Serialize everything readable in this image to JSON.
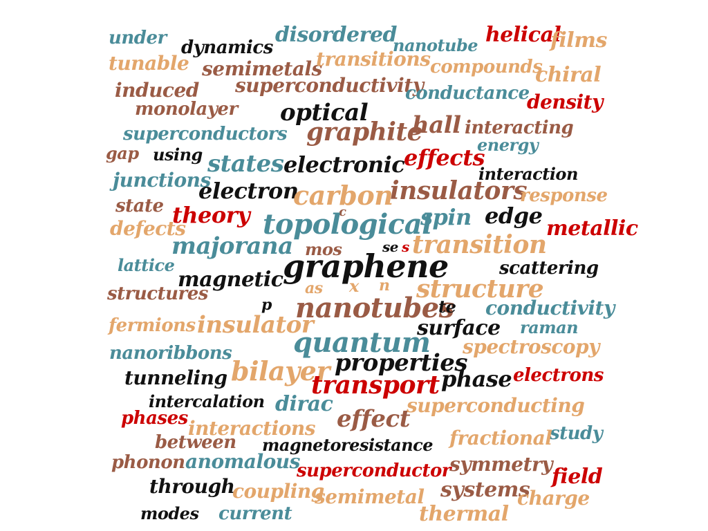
{
  "palette": {
    "teal": "#4a8c99",
    "tan": "#e3a66b",
    "brown": "#9a5b45",
    "black": "#111111",
    "red": "#cc0000"
  },
  "words": [
    "under",
    "dynamics",
    "disordered",
    "nanotube",
    "helical",
    "films",
    "tunable",
    "semimetals",
    "transitions",
    "compounds",
    "chiral",
    "induced",
    "superconductivity",
    "conductance",
    "density",
    "monolayer",
    "optical",
    "hall",
    "interacting",
    "superconductors",
    "graphite",
    "energy",
    "gap",
    "using",
    "states",
    "electronic",
    "effects",
    "interaction",
    "junctions",
    "electron",
    "carbon",
    "insulators",
    "response",
    "state",
    "theory",
    "c",
    "defects",
    "topological",
    "spin",
    "edge",
    "metallic",
    "majorana",
    "mos",
    "se",
    "s",
    "transition",
    "lattice",
    "graphene",
    "scattering",
    "magnetic",
    "structures",
    "as",
    "x",
    "n",
    "structure",
    "p",
    "nanotubes",
    "te",
    "conductivity",
    "fermions",
    "insulator",
    "surface",
    "raman",
    "quantum",
    "spectroscopy",
    "nanoribbons",
    "properties",
    "tunneling",
    "bilayer",
    "phase",
    "electrons",
    "transport",
    "intercalation",
    "dirac",
    "superconducting",
    "phases",
    "effect",
    "interactions",
    "study",
    "between",
    "magnetoresistance",
    "fractional",
    "phonon",
    "anomalous",
    "symmetry",
    "field",
    "superconductor",
    "through",
    "coupling",
    "systems",
    "semimetal",
    "charge",
    "modes",
    "current",
    "thermal"
  ]
}
